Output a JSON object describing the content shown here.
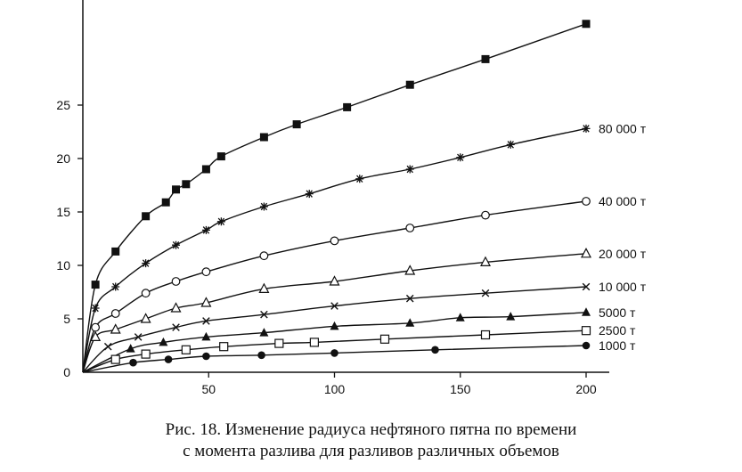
{
  "chart_data": {
    "type": "line",
    "xlim": [
      0,
      210
    ],
    "ylim": [
      0,
      33
    ],
    "xticks": [
      50,
      100,
      150,
      200
    ],
    "yticks": [
      0,
      5,
      10,
      15,
      20,
      25
    ],
    "grid": false,
    "series": [
      {
        "name": "80 000 т",
        "marker": "square-filled",
        "label": "",
        "x": [
          0,
          5,
          13,
          25,
          33,
          37,
          41,
          49,
          55,
          72,
          85,
          105,
          130,
          160,
          200
        ],
        "y": [
          0,
          8.2,
          11.3,
          14.6,
          15.9,
          17.1,
          17.6,
          19.0,
          20.2,
          22.0,
          23.2,
          24.8,
          26.9,
          29.3,
          32.6
        ]
      },
      {
        "name": "",
        "marker": "asterisk",
        "label": "80 000 т",
        "x": [
          0,
          5,
          13,
          25,
          37,
          49,
          55,
          72,
          90,
          110,
          130,
          150,
          170,
          200
        ],
        "y": [
          0,
          6.0,
          8.0,
          10.2,
          11.9,
          13.3,
          14.1,
          15.5,
          16.7,
          18.1,
          19.0,
          20.1,
          21.3,
          22.8
        ]
      },
      {
        "name": "",
        "marker": "circle-open",
        "label": "40 000 т",
        "x": [
          0,
          5,
          13,
          25,
          37,
          49,
          72,
          100,
          130,
          160,
          200
        ],
        "y": [
          0,
          4.2,
          5.5,
          7.4,
          8.5,
          9.4,
          10.9,
          12.3,
          13.5,
          14.7,
          16.0
        ]
      },
      {
        "name": "",
        "marker": "triangle-open",
        "label": "20 000 т",
        "x": [
          0,
          5,
          13,
          25,
          37,
          49,
          72,
          100,
          130,
          160,
          200
        ],
        "y": [
          0,
          3.3,
          4.0,
          5.0,
          6.0,
          6.5,
          7.8,
          8.5,
          9.5,
          10.3,
          11.1
        ]
      },
      {
        "name": "",
        "marker": "x",
        "label": "10 000 т",
        "x": [
          0,
          10,
          22,
          37,
          49,
          72,
          100,
          130,
          160,
          200
        ],
        "y": [
          0,
          2.4,
          3.3,
          4.2,
          4.8,
          5.4,
          6.2,
          6.9,
          7.4,
          8.0
        ]
      },
      {
        "name": "",
        "marker": "triangle-filled",
        "label": "5000 т",
        "x": [
          0,
          19,
          32,
          49,
          72,
          100,
          130,
          150,
          170,
          200
        ],
        "y": [
          0,
          2.2,
          2.8,
          3.3,
          3.7,
          4.3,
          4.6,
          5.1,
          5.2,
          5.6
        ]
      },
      {
        "name": "",
        "marker": "square-open",
        "label": "2500 т",
        "x": [
          0,
          13,
          25,
          41,
          56,
          78,
          92,
          120,
          160,
          200
        ],
        "y": [
          0,
          1.2,
          1.7,
          2.1,
          2.4,
          2.7,
          2.8,
          3.1,
          3.5,
          3.9
        ]
      },
      {
        "name": "",
        "marker": "circle-filled",
        "label": "1000 т",
        "x": [
          0,
          20,
          34,
          49,
          71,
          100,
          140,
          200
        ],
        "y": [
          0,
          0.9,
          1.2,
          1.5,
          1.6,
          1.8,
          2.1,
          2.5
        ]
      }
    ]
  },
  "caption": {
    "line1": "Рис. 18. Изменение радиуса нефтяного пятна по времени",
    "line2": "с момента разлива для разливов различных объемов"
  }
}
